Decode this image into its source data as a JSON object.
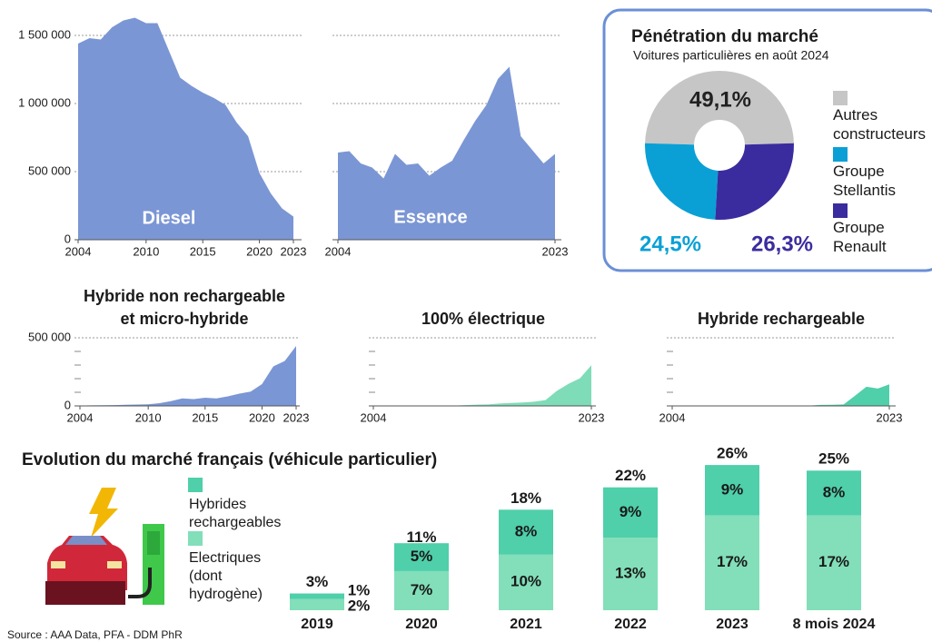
{
  "chart_data": [
    {
      "type": "area",
      "label": "Diesel",
      "color": "#7b96d4",
      "x": [
        2004,
        2005,
        2006,
        2007,
        2008,
        2009,
        2010,
        2011,
        2012,
        2013,
        2014,
        2015,
        2016,
        2017,
        2018,
        2019,
        2020,
        2021,
        2022,
        2023
      ],
      "values": [
        1440000,
        1480000,
        1470000,
        1560000,
        1610000,
        1630000,
        1590000,
        1590000,
        1390000,
        1190000,
        1130000,
        1080000,
        1040000,
        990000,
        860000,
        760000,
        490000,
        340000,
        230000,
        170000
      ],
      "xlim": [
        2004,
        2023
      ],
      "xticks": [
        2004,
        2010,
        2015,
        2020,
        2023
      ],
      "ylim": [
        0,
        1650000
      ],
      "yticks": [
        0,
        {
          "value": 500000,
          "label": "500 000"
        },
        {
          "value": 1000000,
          "label": "1 000 000"
        },
        {
          "value": 1500000,
          "label": "1 500 000"
        }
      ]
    },
    {
      "type": "area",
      "label": "Essence",
      "color": "#7b96d4",
      "x": [
        2004,
        2005,
        2006,
        2007,
        2008,
        2009,
        2010,
        2011,
        2012,
        2013,
        2014,
        2015,
        2016,
        2017,
        2018,
        2019,
        2020,
        2021,
        2022,
        2023
      ],
      "values": [
        640000,
        650000,
        560000,
        530000,
        450000,
        630000,
        550000,
        560000,
        470000,
        530000,
        580000,
        730000,
        870000,
        990000,
        1180000,
        1270000,
        760000,
        660000,
        560000,
        630000
      ],
      "xlim": [
        2004,
        2023
      ],
      "xticks": [
        2004,
        2023
      ],
      "ylim": [
        0,
        1650000
      ]
    },
    {
      "type": "pie",
      "title": "Pénétration du marché",
      "subtitle": "Voitures particulières en août 2024",
      "categories": [
        "Autres constructeurs",
        "Groupe Stellantis",
        "Groupe Renault"
      ],
      "values": [
        49.1,
        24.5,
        26.3
      ],
      "value_labels": [
        "49,1%",
        "24,5%",
        "26,3%"
      ],
      "colors": [
        "#c6c6c6",
        "#0aa0d6",
        "#3a2c9e"
      ]
    },
    {
      "type": "area",
      "title": [
        "Hybride non rechargeable",
        "et micro-hybride"
      ],
      "color": "#7b96d4",
      "x": [
        2004,
        2005,
        2006,
        2007,
        2008,
        2009,
        2010,
        2011,
        2012,
        2013,
        2014,
        2015,
        2016,
        2017,
        2018,
        2019,
        2020,
        2021,
        2022,
        2023
      ],
      "values": [
        3000,
        4000,
        5000,
        6000,
        8000,
        10000,
        12000,
        20000,
        35000,
        55000,
        50000,
        60000,
        55000,
        70000,
        90000,
        105000,
        160000,
        290000,
        330000,
        440000
      ],
      "xlim": [
        2004,
        2023
      ],
      "xticks": [
        2004,
        2010,
        2015,
        2020,
        2023
      ],
      "ylim": [
        0,
        500000
      ],
      "yticks": [
        0,
        {
          "value": 500000,
          "label": "500 000"
        }
      ],
      "minor_yticks": [
        100000,
        200000,
        300000,
        400000
      ]
    },
    {
      "type": "area",
      "title": [
        "100% électrique"
      ],
      "color": "#7fdcb8",
      "x": [
        2004,
        2005,
        2006,
        2007,
        2008,
        2009,
        2010,
        2011,
        2012,
        2013,
        2014,
        2015,
        2016,
        2017,
        2018,
        2019,
        2020,
        2021,
        2022,
        2023
      ],
      "values": [
        0,
        0,
        0,
        0,
        0,
        0,
        1000,
        2000,
        6000,
        9000,
        11000,
        17000,
        22000,
        25000,
        31000,
        43000,
        111000,
        162000,
        203000,
        298000
      ],
      "xlim": [
        2004,
        2023
      ],
      "xticks": [
        2004,
        2023
      ],
      "ylim": [
        0,
        500000
      ]
    },
    {
      "type": "area",
      "title": [
        "Hybride rechargeable"
      ],
      "color": "#4fcfaa",
      "x": [
        2004,
        2005,
        2006,
        2007,
        2008,
        2009,
        2010,
        2011,
        2012,
        2013,
        2014,
        2015,
        2016,
        2017,
        2018,
        2019,
        2020,
        2021,
        2022,
        2023
      ],
      "values": [
        0,
        0,
        0,
        0,
        0,
        0,
        0,
        0,
        0,
        0,
        1000,
        2000,
        3000,
        7000,
        8000,
        11000,
        75000,
        141000,
        127000,
        158000
      ],
      "xlim": [
        2004,
        2023
      ],
      "xticks": [
        2004,
        2023
      ],
      "ylim": [
        0,
        500000
      ]
    },
    {
      "type": "stacked_bar",
      "title": "Evolution du marché français (véhicule particulier)",
      "categories": [
        "2019",
        "2020",
        "2021",
        "2022",
        "2023",
        "8 mois 2024"
      ],
      "series": [
        {
          "name": "Electriques (dont hydrogène)",
          "color": "#82dfba",
          "values": [
            2,
            7,
            10,
            13,
            17,
            17
          ],
          "value_labels": [
            "2%",
            "7%",
            "10%",
            "13%",
            "17%",
            "17%"
          ]
        },
        {
          "name": "Hybrides rechargeables",
          "color": "#4fcfaa",
          "values": [
            1,
            5,
            8,
            9,
            9,
            8
          ],
          "value_labels": [
            "1%",
            "5%",
            "8%",
            "9%",
            "9%",
            "8%"
          ]
        }
      ],
      "totals": [
        3,
        11,
        18,
        22,
        26,
        25
      ],
      "total_labels": [
        "3%",
        "11%",
        "18%",
        "22%",
        "26%",
        "25%"
      ],
      "ylim": [
        0,
        30
      ]
    }
  ],
  "source": "Source : AAA Data, PFA - DDM PhR"
}
